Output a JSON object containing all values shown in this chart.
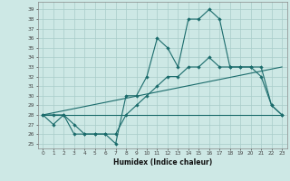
{
  "title": "",
  "xlabel": "Humidex (Indice chaleur)",
  "bg_color": "#cde8e5",
  "grid_color": "#a8ccc9",
  "line_color": "#1a6b6b",
  "xlim": [
    -0.5,
    23.5
  ],
  "ylim": [
    24.5,
    39.8
  ],
  "yticks": [
    25,
    26,
    27,
    28,
    29,
    30,
    31,
    32,
    33,
    34,
    35,
    36,
    37,
    38,
    39
  ],
  "xticks": [
    0,
    1,
    2,
    3,
    4,
    5,
    6,
    7,
    8,
    9,
    10,
    11,
    12,
    13,
    14,
    15,
    16,
    17,
    18,
    19,
    20,
    21,
    22,
    23
  ],
  "line1_x": [
    0,
    1,
    2,
    3,
    4,
    5,
    6,
    7,
    8,
    9,
    10,
    11,
    12,
    13,
    14,
    15,
    16,
    17,
    18,
    19,
    20,
    21,
    22,
    23
  ],
  "line1_y": [
    28,
    28,
    28,
    27,
    26,
    26,
    26,
    25,
    30,
    30,
    32,
    36,
    35,
    33,
    38,
    38,
    39,
    38,
    33,
    33,
    33,
    32,
    29,
    28
  ],
  "line1_markers": true,
  "line2_x": [
    0,
    23
  ],
  "line2_y": [
    28,
    33
  ],
  "line2_markers": false,
  "line3_x": [
    0,
    23
  ],
  "line3_y": [
    28,
    28
  ],
  "line3_markers": false,
  "line4_x": [
    0,
    1,
    2,
    3,
    4,
    5,
    6,
    7,
    8,
    9,
    10,
    11,
    12,
    13,
    14,
    15,
    16,
    17,
    18,
    19,
    20,
    21,
    22,
    23
  ],
  "line4_y": [
    28,
    27,
    28,
    26,
    26,
    26,
    26,
    26,
    28,
    29,
    30,
    31,
    32,
    32,
    33,
    33,
    34,
    33,
    33,
    33,
    33,
    33,
    29,
    28
  ],
  "line4_markers": true
}
